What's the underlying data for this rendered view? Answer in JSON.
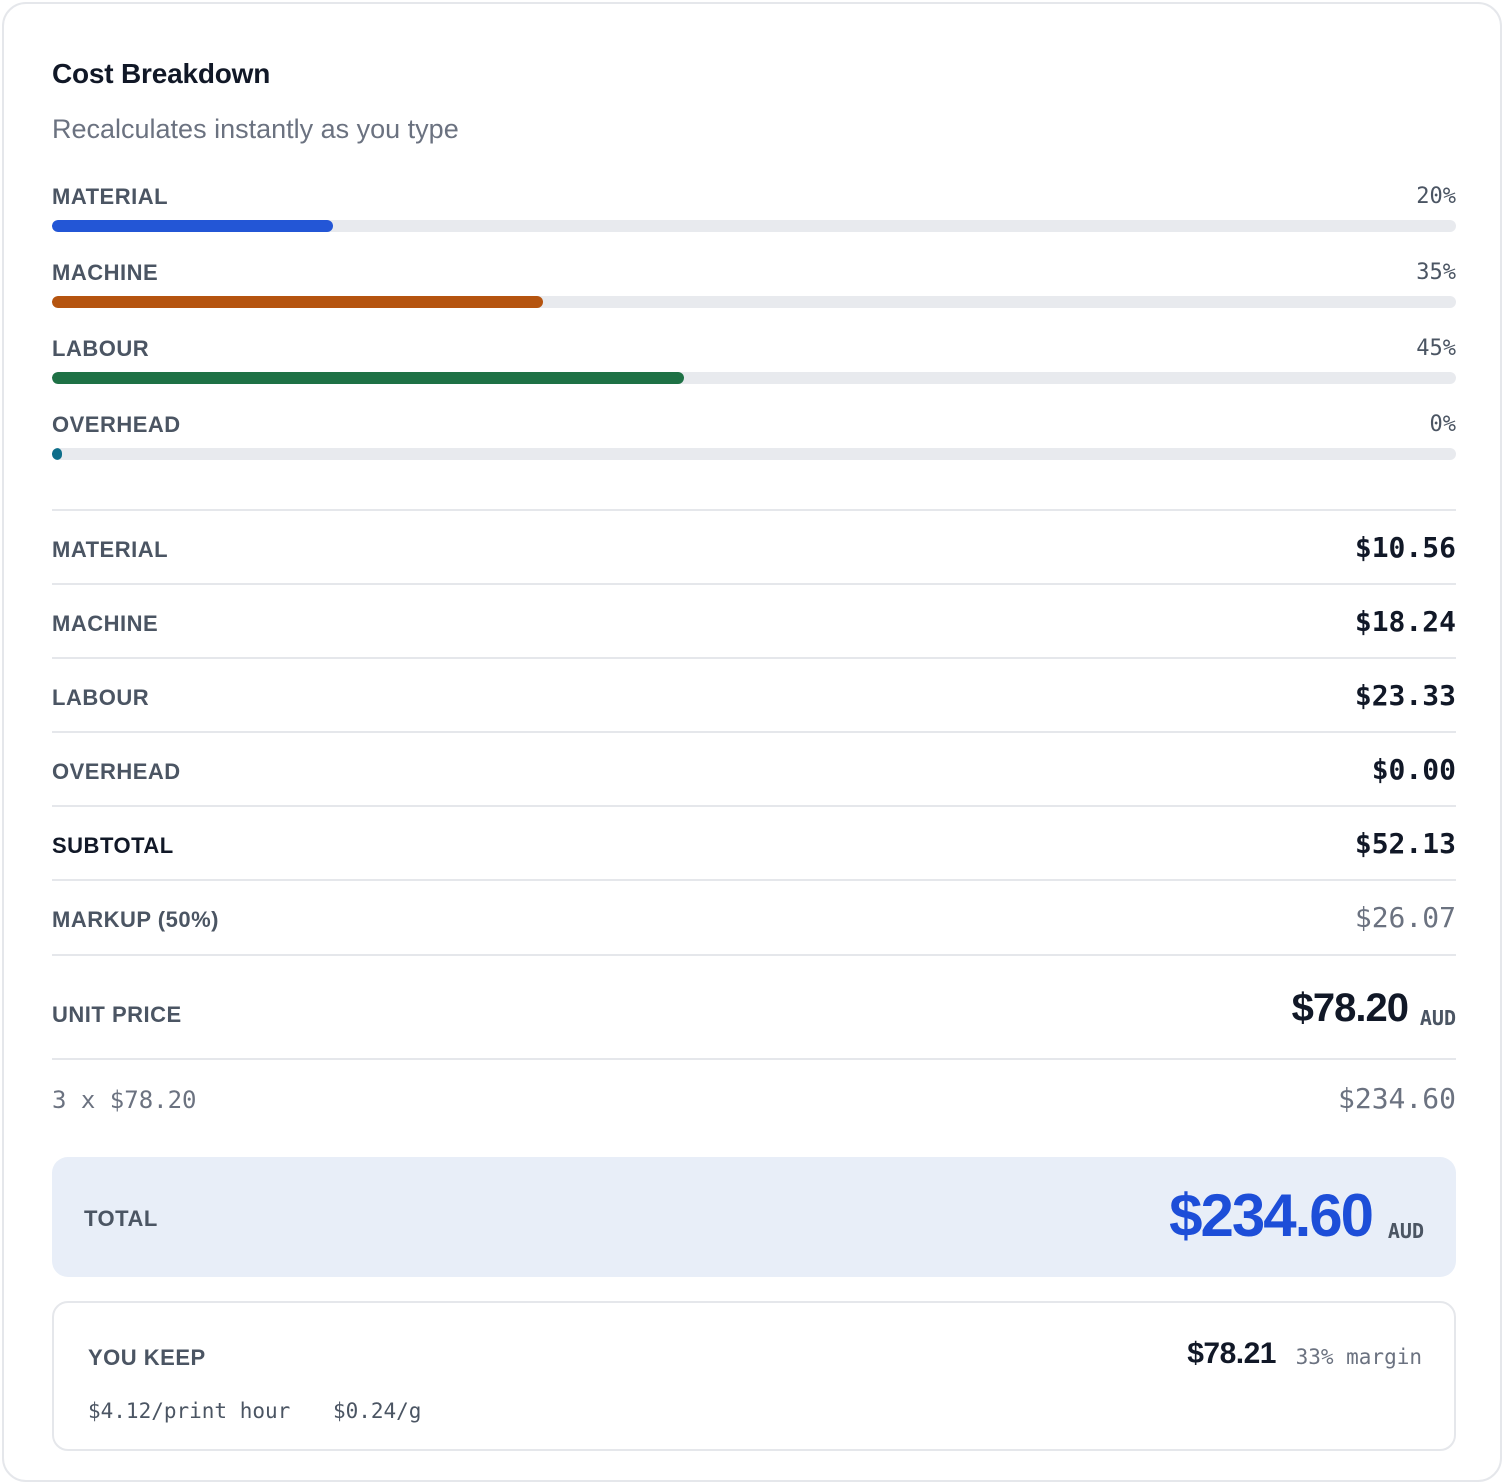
{
  "header": {
    "title": "Cost Breakdown",
    "subtitle": "Recalculates instantly as you type"
  },
  "bars": [
    {
      "label": "MATERIAL",
      "percent_text": "20%",
      "fraction": 0.2,
      "color": "#2356d6"
    },
    {
      "label": "MACHINE",
      "percent_text": "35%",
      "fraction": 0.35,
      "color": "#b5540f"
    },
    {
      "label": "LABOUR",
      "percent_text": "45%",
      "fraction": 0.45,
      "color": "#1e7145"
    },
    {
      "label": "OVERHEAD",
      "percent_text": "0%",
      "fraction": 0.0,
      "color": "#0e6e8a"
    }
  ],
  "rows": [
    {
      "label": "MATERIAL",
      "value": "$10.56"
    },
    {
      "label": "MACHINE",
      "value": "$18.24"
    },
    {
      "label": "LABOUR",
      "value": "$23.33"
    },
    {
      "label": "OVERHEAD",
      "value": "$0.00"
    },
    {
      "label": "SUBTOTAL",
      "value": "$52.13"
    },
    {
      "label": "MARKUP (50%)",
      "value": "$26.07"
    }
  ],
  "unit_price": {
    "label": "UNIT PRICE",
    "value": "$78.20",
    "currency": "AUD"
  },
  "quantity": {
    "expression": "3 x $78.20",
    "value": "$234.60"
  },
  "total": {
    "label": "TOTAL",
    "value": "$234.60",
    "currency": "AUD",
    "accent": "#1d4ed8"
  },
  "you_keep": {
    "label": "YOU KEEP",
    "value": "$78.21",
    "margin": "33% margin",
    "per_hour": "$4.12/print hour",
    "per_gram": "$0.24/g"
  }
}
